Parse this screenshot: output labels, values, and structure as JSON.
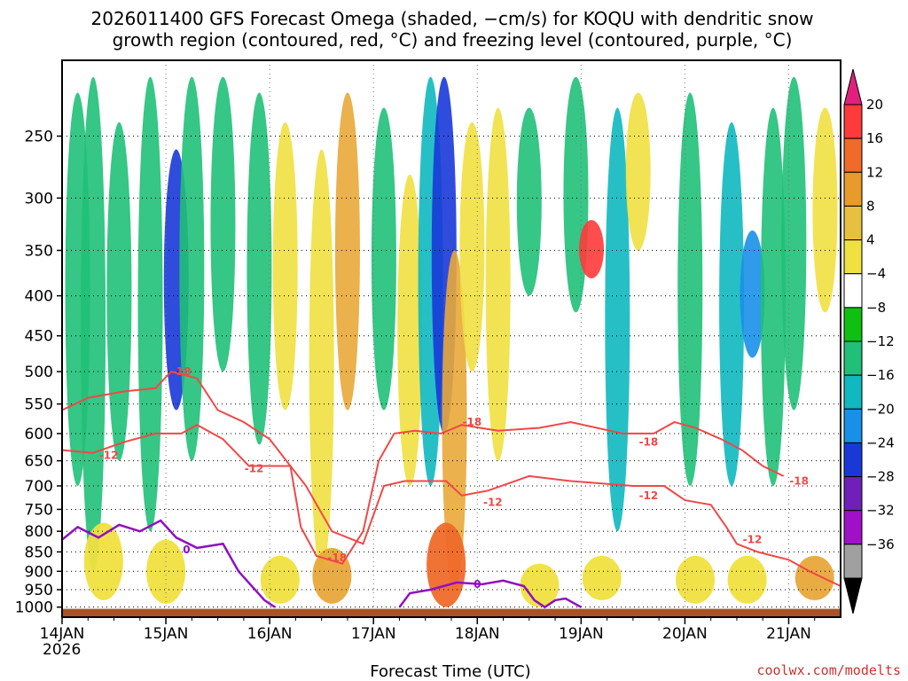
{
  "chart_data": {
    "type": "heatmap",
    "title_line1": "2026011400 GFS Forecast Omega (shaded, −cm/s) for KOQU with dendritic snow",
    "title_line2": "growth region (contoured, red, °C) and freezing level (contoured, purple, °C)",
    "xlabel": "Forecast Time (UTC)",
    "x_ticks": [
      {
        "label": "14JAN",
        "day": 0
      },
      {
        "label": "15JAN",
        "day": 1
      },
      {
        "label": "16JAN",
        "day": 2
      },
      {
        "label": "17JAN",
        "day": 3
      },
      {
        "label": "18JAN",
        "day": 4
      },
      {
        "label": "19JAN",
        "day": 5
      },
      {
        "label": "20JAN",
        "day": 6
      },
      {
        "label": "21JAN",
        "day": 7
      }
    ],
    "x_year_label": "2026",
    "xlim_days": [
      0,
      7.5
    ],
    "y_ticks": [
      250,
      300,
      350,
      400,
      450,
      500,
      550,
      600,
      650,
      700,
      750,
      800,
      850,
      900,
      950,
      1000
    ],
    "ylim_hpa": [
      200,
      1030
    ],
    "colorbar": {
      "tick_labels": [
        "20",
        "16",
        "12",
        "8",
        "4",
        "−4",
        "−8",
        "−12",
        "−16",
        "−20",
        "−24",
        "−28",
        "−32",
        "−36"
      ],
      "colors": [
        "#e0207a",
        "#ff3a3a",
        "#f06a2a",
        "#e89a2a",
        "#e8c040",
        "#f0e040",
        "#ffffff",
        "#10c010",
        "#20c078",
        "#10b8c0",
        "#1890e8",
        "#1838d8",
        "#7020b8",
        "#a010c8",
        "#a0a0a0",
        "#000000"
      ]
    },
    "omega_bands": [
      {
        "day": 0.15,
        "p_top": 220,
        "p_bot": 700,
        "value": -8
      },
      {
        "day": 0.3,
        "p_top": 210,
        "p_bot": 900,
        "value": -10
      },
      {
        "day": 0.55,
        "p_top": 240,
        "p_bot": 650,
        "value": -8
      },
      {
        "day": 0.85,
        "p_top": 210,
        "p_bot": 800,
        "value": -10
      },
      {
        "day": 1.1,
        "p_top": 260,
        "p_bot": 560,
        "value": -22
      },
      {
        "day": 1.25,
        "p_top": 210,
        "p_bot": 650,
        "value": -10
      },
      {
        "day": 1.55,
        "p_top": 210,
        "p_bot": 500,
        "value": -8
      },
      {
        "day": 1.9,
        "p_top": 220,
        "p_bot": 620,
        "value": -8
      },
      {
        "day": 2.15,
        "p_top": 240,
        "p_bot": 560,
        "value": 6
      },
      {
        "day": 2.5,
        "p_top": 260,
        "p_bot": 900,
        "value": 6
      },
      {
        "day": 2.75,
        "p_top": 220,
        "p_bot": 560,
        "value": 10
      },
      {
        "day": 3.1,
        "p_top": 230,
        "p_bot": 560,
        "value": -8
      },
      {
        "day": 3.35,
        "p_top": 280,
        "p_bot": 700,
        "value": 6
      },
      {
        "day": 3.55,
        "p_top": 210,
        "p_bot": 700,
        "value": -12
      },
      {
        "day": 3.68,
        "p_top": 210,
        "p_bot": 600,
        "value": -20
      },
      {
        "day": 3.78,
        "p_top": 350,
        "p_bot": 950,
        "value": 10
      },
      {
        "day": 3.95,
        "p_top": 240,
        "p_bot": 500,
        "value": 6
      },
      {
        "day": 4.2,
        "p_top": 230,
        "p_bot": 650,
        "value": 6
      },
      {
        "day": 4.5,
        "p_top": 230,
        "p_bot": 400,
        "value": -8
      },
      {
        "day": 4.95,
        "p_top": 210,
        "p_bot": 420,
        "value": -10
      },
      {
        "day": 5.1,
        "p_top": 320,
        "p_bot": 380,
        "value": 18
      },
      {
        "day": 5.35,
        "p_top": 230,
        "p_bot": 800,
        "value": -12
      },
      {
        "day": 5.55,
        "p_top": 220,
        "p_bot": 350,
        "value": 6
      },
      {
        "day": 6.05,
        "p_top": 220,
        "p_bot": 700,
        "value": -8
      },
      {
        "day": 6.45,
        "p_top": 240,
        "p_bot": 700,
        "value": -12
      },
      {
        "day": 6.65,
        "p_top": 330,
        "p_bot": 480,
        "value": -18
      },
      {
        "day": 6.85,
        "p_top": 230,
        "p_bot": 700,
        "value": -8
      },
      {
        "day": 7.05,
        "p_top": 210,
        "p_bot": 560,
        "value": -8
      },
      {
        "day": 7.35,
        "p_top": 230,
        "p_bot": 420,
        "value": 6
      }
    ],
    "low_level_patches": [
      {
        "day": 0.4,
        "p_top": 780,
        "p_bot": 980,
        "value": 6
      },
      {
        "day": 1.0,
        "p_top": 820,
        "p_bot": 990,
        "value": 6
      },
      {
        "day": 2.1,
        "p_top": 860,
        "p_bot": 990,
        "value": 6
      },
      {
        "day": 2.6,
        "p_top": 840,
        "p_bot": 990,
        "value": 8
      },
      {
        "day": 3.7,
        "p_top": 780,
        "p_bot": 1000,
        "value": 14
      },
      {
        "day": 4.6,
        "p_top": 880,
        "p_bot": 1000,
        "value": 6
      },
      {
        "day": 5.2,
        "p_top": 860,
        "p_bot": 980,
        "value": 6
      },
      {
        "day": 6.1,
        "p_top": 860,
        "p_bot": 990,
        "value": 6
      },
      {
        "day": 6.6,
        "p_top": 860,
        "p_bot": 990,
        "value": 6
      },
      {
        "day": 7.25,
        "p_top": 860,
        "p_bot": 980,
        "value": 10
      }
    ],
    "dgz_minus12": [
      {
        "day": 0,
        "p": 630
      },
      {
        "day": 0.3,
        "p": 635
      },
      {
        "day": 0.6,
        "p": 615
      },
      {
        "day": 0.9,
        "p": 600
      },
      {
        "day": 1.15,
        "p": 600
      },
      {
        "day": 1.3,
        "p": 585
      },
      {
        "day": 1.55,
        "p": 610
      },
      {
        "day": 1.8,
        "p": 660
      },
      {
        "day": 2.05,
        "p": 660
      },
      {
        "day": 2.2,
        "p": 660
      },
      {
        "day": 2.35,
        "p": 700
      },
      {
        "day": 2.6,
        "p": 800
      },
      {
        "day": 2.9,
        "p": 830
      },
      {
        "day": 3.1,
        "p": 700
      },
      {
        "day": 3.3,
        "p": 690
      },
      {
        "day": 3.7,
        "p": 690
      },
      {
        "day": 3.85,
        "p": 720
      },
      {
        "day": 4.1,
        "p": 710
      },
      {
        "day": 4.5,
        "p": 680
      },
      {
        "day": 4.9,
        "p": 690
      },
      {
        "day": 5.2,
        "p": 695
      },
      {
        "day": 5.5,
        "p": 700
      },
      {
        "day": 5.8,
        "p": 700
      },
      {
        "day": 6.0,
        "p": 730
      },
      {
        "day": 6.25,
        "p": 740
      },
      {
        "day": 6.4,
        "p": 790
      },
      {
        "day": 6.5,
        "p": 830
      },
      {
        "day": 6.7,
        "p": 850
      },
      {
        "day": 6.85,
        "p": 860
      },
      {
        "day": 7.0,
        "p": 870
      },
      {
        "day": 7.2,
        "p": 900
      },
      {
        "day": 7.5,
        "p": 940
      }
    ],
    "dgz_minus18": [
      {
        "day": 0,
        "p": 560
      },
      {
        "day": 0.25,
        "p": 540
      },
      {
        "day": 0.6,
        "p": 530
      },
      {
        "day": 0.9,
        "p": 525
      },
      {
        "day": 1.05,
        "p": 500
      },
      {
        "day": 1.3,
        "p": 510
      },
      {
        "day": 1.5,
        "p": 560
      },
      {
        "day": 1.75,
        "p": 580
      },
      {
        "day": 2.0,
        "p": 610
      },
      {
        "day": 2.2,
        "p": 660
      },
      {
        "day": 2.3,
        "p": 790
      },
      {
        "day": 2.45,
        "p": 860
      },
      {
        "day": 2.7,
        "p": 880
      },
      {
        "day": 2.9,
        "p": 800
      },
      {
        "day": 3.05,
        "p": 650
      },
      {
        "day": 3.2,
        "p": 600
      },
      {
        "day": 3.4,
        "p": 595
      },
      {
        "day": 3.65,
        "p": 600
      },
      {
        "day": 3.85,
        "p": 585
      },
      {
        "day": 4.2,
        "p": 595
      },
      {
        "day": 4.6,
        "p": 590
      },
      {
        "day": 4.9,
        "p": 580
      },
      {
        "day": 5.15,
        "p": 590
      },
      {
        "day": 5.4,
        "p": 600
      },
      {
        "day": 5.7,
        "p": 600
      },
      {
        "day": 5.9,
        "p": 580
      },
      {
        "day": 6.1,
        "p": 590
      },
      {
        "day": 6.35,
        "p": 610
      },
      {
        "day": 6.55,
        "p": 630
      },
      {
        "day": 6.75,
        "p": 660
      },
      {
        "day": 6.95,
        "p": 680
      }
    ],
    "freezing_level_0": [
      {
        "day": 0,
        "p": 820
      },
      {
        "day": 0.15,
        "p": 790
      },
      {
        "day": 0.35,
        "p": 815
      },
      {
        "day": 0.55,
        "p": 785
      },
      {
        "day": 0.75,
        "p": 800
      },
      {
        "day": 0.95,
        "p": 775
      },
      {
        "day": 1.1,
        "p": 815
      },
      {
        "day": 1.3,
        "p": 840
      },
      {
        "day": 1.55,
        "p": 830
      },
      {
        "day": 1.7,
        "p": 900
      },
      {
        "day": 1.95,
        "p": 980
      },
      {
        "day": 2.05,
        "p": 1000
      }
    ],
    "freezing_level_0_b": [
      {
        "day": 3.25,
        "p": 1000
      },
      {
        "day": 3.35,
        "p": 960
      },
      {
        "day": 3.55,
        "p": 950
      },
      {
        "day": 3.8,
        "p": 930
      },
      {
        "day": 4.05,
        "p": 935
      },
      {
        "day": 4.25,
        "p": 925
      },
      {
        "day": 4.45,
        "p": 940
      },
      {
        "day": 4.55,
        "p": 980
      },
      {
        "day": 4.65,
        "p": 1000
      },
      {
        "day": 4.75,
        "p": 980
      },
      {
        "day": 4.85,
        "p": 975
      },
      {
        "day": 5.0,
        "p": 1000
      }
    ],
    "contour_labels": [
      {
        "text": "-18",
        "day": 1.15,
        "p": 500,
        "color": "#f04848"
      },
      {
        "text": "-12",
        "day": 0.45,
        "p": 640,
        "color": "#f04848"
      },
      {
        "text": "-12",
        "day": 1.85,
        "p": 665,
        "color": "#f04848"
      },
      {
        "text": "-18",
        "day": 2.65,
        "p": 865,
        "color": "#f04848"
      },
      {
        "text": "-18",
        "day": 3.95,
        "p": 580,
        "color": "#f04848"
      },
      {
        "text": "-12",
        "day": 4.15,
        "p": 735,
        "color": "#f04848"
      },
      {
        "text": "-18",
        "day": 5.65,
        "p": 615,
        "color": "#f04848"
      },
      {
        "text": "-12",
        "day": 5.65,
        "p": 720,
        "color": "#f04848"
      },
      {
        "text": "-18",
        "day": 7.1,
        "p": 690,
        "color": "#f04848"
      },
      {
        "text": "-12",
        "day": 6.65,
        "p": 820,
        "color": "#f04848"
      },
      {
        "text": "0",
        "day": 1.2,
        "p": 845,
        "color": "#9010c0"
      },
      {
        "text": "0",
        "day": 4.0,
        "p": 935,
        "color": "#9010c0"
      }
    ],
    "terrain_color": "#a85228",
    "credit": "coolwx.com/modelts"
  }
}
